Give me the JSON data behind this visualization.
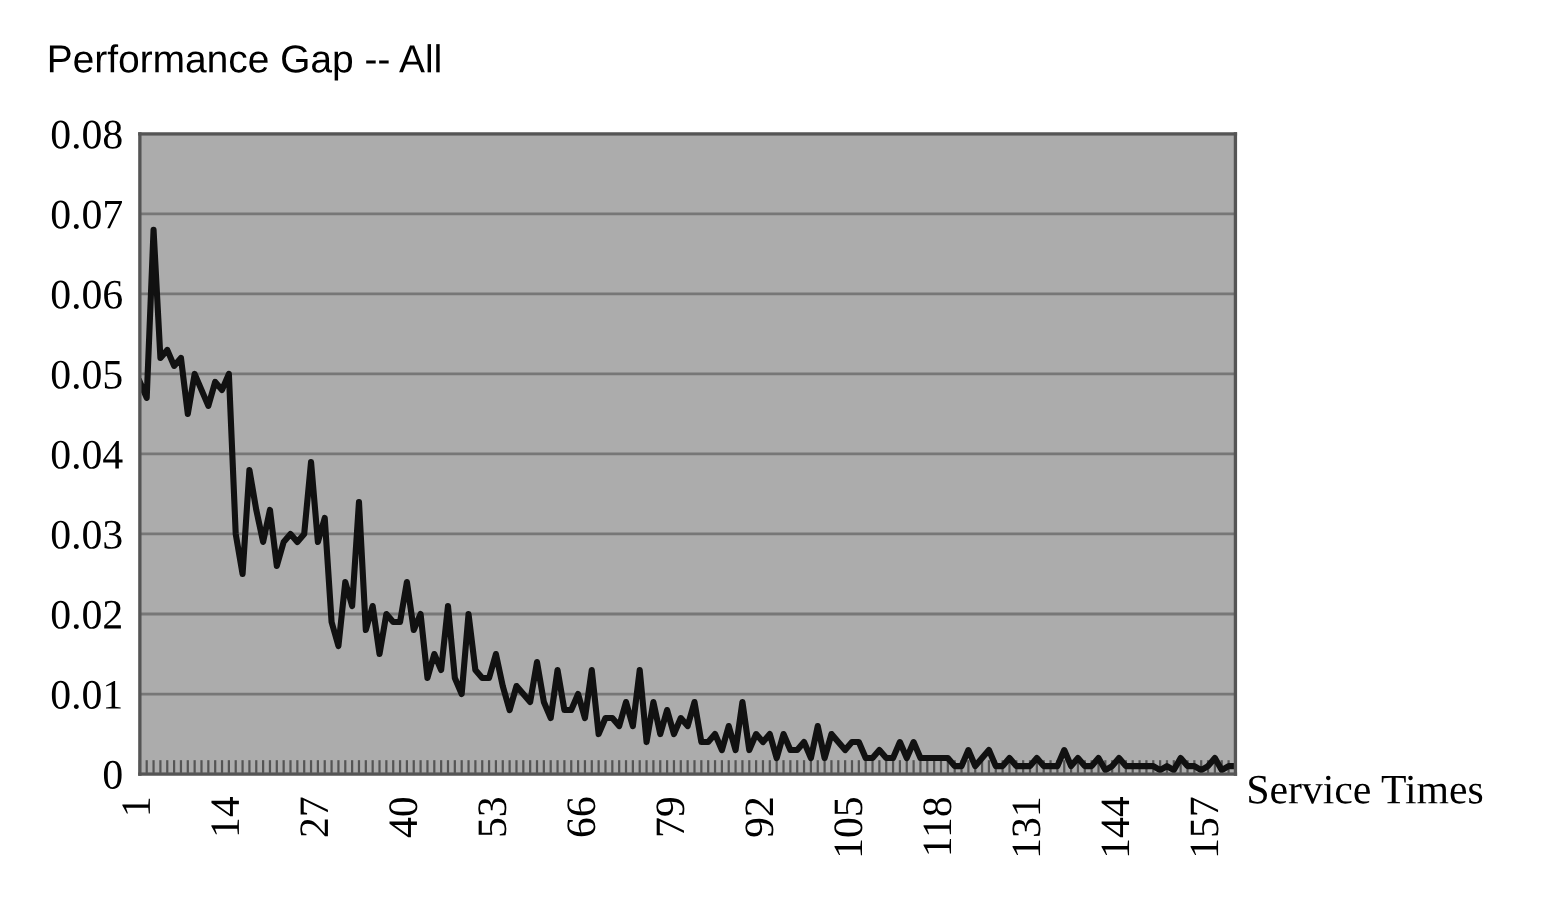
{
  "chart_data": {
    "type": "line",
    "title": "Performance Gap -- All",
    "xlabel": "Service Times",
    "categories": [
      "1",
      null,
      null,
      null,
      null,
      null,
      null,
      null,
      null,
      null,
      null,
      null,
      null,
      "14",
      null,
      null,
      null,
      null,
      null,
      null,
      null,
      null,
      null,
      null,
      null,
      null,
      "27",
      null,
      null,
      null,
      null,
      null,
      null,
      null,
      null,
      null,
      null,
      null,
      null,
      "40",
      null,
      null,
      null,
      null,
      null,
      null,
      null,
      null,
      null,
      null,
      null,
      null,
      "53",
      null,
      null,
      null,
      null,
      null,
      null,
      null,
      null,
      null,
      null,
      null,
      null,
      "66",
      null,
      null,
      null,
      null,
      null,
      null,
      null,
      null,
      null,
      null,
      null,
      null,
      "79",
      null,
      null,
      null,
      null,
      null,
      null,
      null,
      null,
      null,
      null,
      null,
      null,
      "92",
      null,
      null,
      null,
      null,
      null,
      null,
      null,
      null,
      null,
      null,
      null,
      null,
      "105",
      null,
      null,
      null,
      null,
      null,
      null,
      null,
      null,
      null,
      null,
      null,
      null,
      "118",
      null,
      null,
      null,
      null,
      null,
      null,
      null,
      null,
      null,
      null,
      null,
      null,
      "131",
      null,
      null,
      null,
      null,
      null,
      null,
      null,
      null,
      null,
      null,
      null,
      null,
      "144",
      null,
      null,
      null,
      null,
      null,
      null,
      null,
      null,
      null,
      null,
      null,
      null,
      "157",
      null,
      null,
      null,
      null
    ],
    "series": [
      {
        "color": "#111111",
        "values": [
          0.049,
          0.047,
          0.068,
          0.052,
          0.053,
          0.051,
          0.052,
          0.045,
          0.05,
          0.048,
          0.046,
          0.049,
          0.048,
          0.05,
          0.03,
          0.025,
          0.038,
          0.033,
          0.029,
          0.033,
          0.026,
          0.029,
          0.03,
          0.029,
          0.03,
          0.039,
          0.029,
          0.032,
          0.019,
          0.016,
          0.024,
          0.021,
          0.034,
          0.018,
          0.021,
          0.015,
          0.02,
          0.019,
          0.019,
          0.024,
          0.018,
          0.02,
          0.012,
          0.015,
          0.013,
          0.021,
          0.012,
          0.01,
          0.02,
          0.013,
          0.012,
          0.012,
          0.015,
          0.011,
          0.008,
          0.011,
          0.01,
          0.009,
          0.014,
          0.009,
          0.007,
          0.013,
          0.008,
          0.008,
          0.01,
          0.007,
          0.013,
          0.005,
          0.007,
          0.007,
          0.006,
          0.009,
          0.006,
          0.013,
          0.004,
          0.009,
          0.005,
          0.008,
          0.005,
          0.007,
          0.006,
          0.009,
          0.004,
          0.004,
          0.005,
          0.003,
          0.006,
          0.003,
          0.009,
          0.003,
          0.005,
          0.004,
          0.005,
          0.002,
          0.005,
          0.003,
          0.003,
          0.004,
          0.002,
          0.006,
          0.002,
          0.005,
          0.004,
          0.003,
          0.004,
          0.004,
          0.002,
          0.002,
          0.003,
          0.002,
          0.002,
          0.004,
          0.002,
          0.004,
          0.002,
          0.002,
          0.002,
          0.002,
          0.002,
          0.001,
          0.001,
          0.003,
          0.001,
          0.002,
          0.003,
          0.001,
          0.001,
          0.002,
          0.001,
          0.001,
          0.001,
          0.002,
          0.001,
          0.001,
          0.001,
          0.003,
          0.001,
          0.002,
          0.001,
          0.001,
          0.002,
          0.0005,
          0.001,
          0.002,
          0.001,
          0.001,
          0.001,
          0.001,
          0.001,
          0.0005,
          0.001,
          0.0005,
          0.002,
          0.001,
          0.001,
          0.0005,
          0.001,
          0.002,
          0.0005,
          0.001,
          0.001
        ]
      }
    ],
    "ylim": [
      0,
      0.08
    ],
    "yticks": [
      0,
      0.01,
      0.02,
      0.03,
      0.04,
      0.05,
      0.06,
      0.07,
      0.08
    ],
    "grid": "y",
    "marker": "none",
    "line_style": "solid"
  }
}
